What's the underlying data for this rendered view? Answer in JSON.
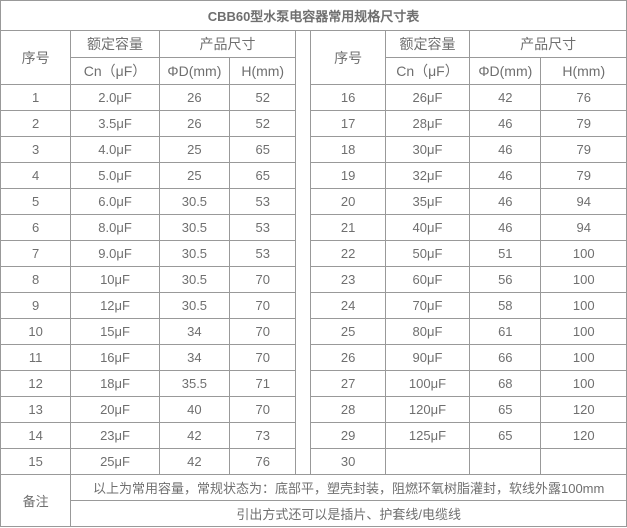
{
  "title": "CBB60型水泵电容器常用规格尺寸表",
  "headers": {
    "serial": "序号",
    "capacity_group": "额定容量",
    "size_group": "产品尺寸",
    "capacity_unit": "Cn（μF）",
    "diameter_unit": "ΦD(mm)",
    "height_unit": "H(mm)"
  },
  "chart_data": {
    "type": "table",
    "columns": [
      "序号",
      "Cn（μF）",
      "ΦD(mm)",
      "H(mm)"
    ],
    "rows_left": [
      [
        "1",
        "2.0μF",
        "26",
        "52"
      ],
      [
        "2",
        "3.5μF",
        "26",
        "52"
      ],
      [
        "3",
        "4.0μF",
        "25",
        "65"
      ],
      [
        "4",
        "5.0μF",
        "25",
        "65"
      ],
      [
        "5",
        "6.0μF",
        "30.5",
        "53"
      ],
      [
        "6",
        "8.0μF",
        "30.5",
        "53"
      ],
      [
        "7",
        "9.0μF",
        "30.5",
        "53"
      ],
      [
        "8",
        "10μF",
        "30.5",
        "70"
      ],
      [
        "9",
        "12μF",
        "30.5",
        "70"
      ],
      [
        "10",
        "15μF",
        "34",
        "70"
      ],
      [
        "11",
        "16μF",
        "34",
        "70"
      ],
      [
        "12",
        "18μF",
        "35.5",
        "71"
      ],
      [
        "13",
        "20μF",
        "40",
        "70"
      ],
      [
        "14",
        "23μF",
        "42",
        "73"
      ],
      [
        "15",
        "25μF",
        "42",
        "76"
      ]
    ],
    "rows_right": [
      [
        "16",
        "26μF",
        "42",
        "76"
      ],
      [
        "17",
        "28μF",
        "46",
        "79"
      ],
      [
        "18",
        "30μF",
        "46",
        "79"
      ],
      [
        "19",
        "32μF",
        "46",
        "79"
      ],
      [
        "20",
        "35μF",
        "46",
        "94"
      ],
      [
        "21",
        "40μF",
        "46",
        "94"
      ],
      [
        "22",
        "50μF",
        "51",
        "100"
      ],
      [
        "23",
        "60μF",
        "56",
        "100"
      ],
      [
        "24",
        "70μF",
        "58",
        "100"
      ],
      [
        "25",
        "80μF",
        "61",
        "100"
      ],
      [
        "26",
        "90μF",
        "66",
        "100"
      ],
      [
        "27",
        "100μF",
        "68",
        "100"
      ],
      [
        "28",
        "120μF",
        "65",
        "120"
      ],
      [
        "29",
        "125μF",
        "65",
        "120"
      ],
      [
        "30",
        "",
        "",
        ""
      ]
    ]
  },
  "remarks": {
    "label": "备注",
    "line1": "以上为常用容量，常规状态为：底部平，塑壳封装，阻燃环氧树脂灌封，软线外露100mm",
    "line2": "引出方式还可以是插片、护套线/电缆线"
  },
  "colors": {
    "outer_border": "#333333",
    "grid_border": "#999999",
    "text": "#6f6f6f",
    "title_text": "#4a4a4a",
    "background": "#ffffff"
  }
}
